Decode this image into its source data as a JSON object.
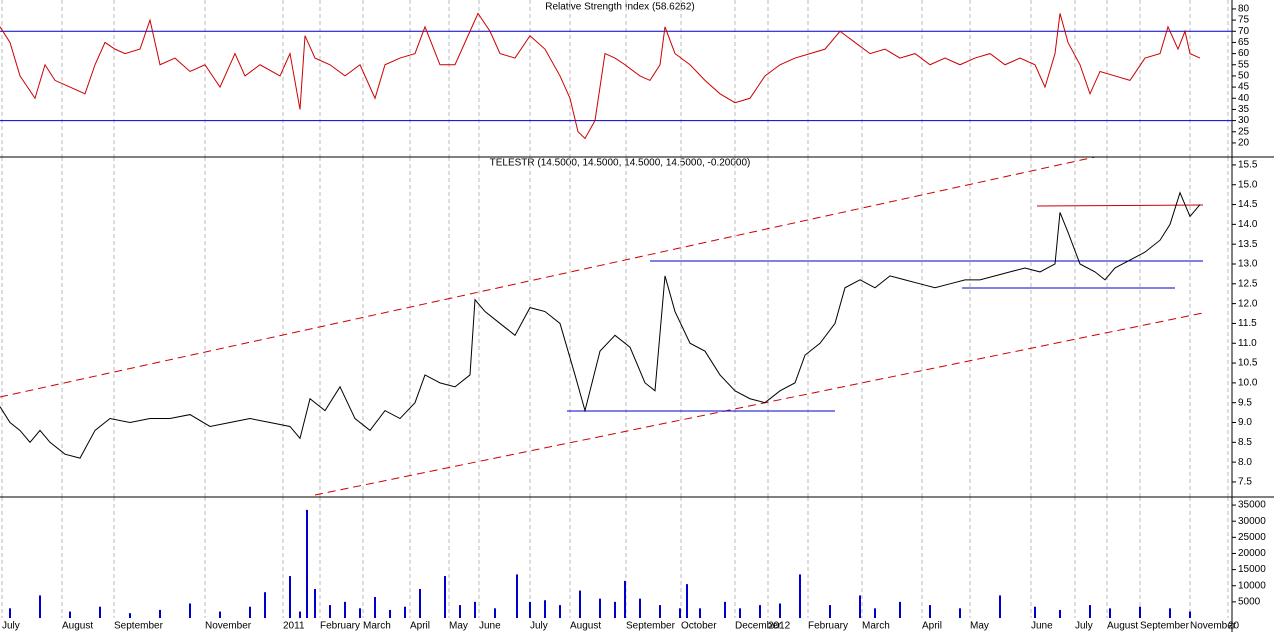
{
  "chart_data": [
    {
      "type": "line",
      "title": "Relative Strength Index (58.6262)",
      "color": "#cc0000",
      "xlim": [
        0,
        1232
      ],
      "x": [
        0,
        10,
        20,
        35,
        45,
        55,
        70,
        85,
        95,
        105,
        115,
        125,
        140,
        150,
        160,
        175,
        190,
        205,
        220,
        235,
        245,
        260,
        280,
        290,
        300,
        305,
        315,
        330,
        345,
        360,
        375,
        385,
        400,
        415,
        425,
        440,
        455,
        470,
        478,
        490,
        500,
        515,
        530,
        545,
        560,
        570,
        578,
        585,
        595,
        605,
        615,
        625,
        640,
        650,
        660,
        665,
        675,
        690,
        705,
        720,
        735,
        750,
        765,
        780,
        795,
        810,
        825,
        840,
        855,
        870,
        885,
        900,
        915,
        930,
        945,
        960,
        975,
        990,
        1005,
        1020,
        1035,
        1045,
        1055,
        1060,
        1068,
        1080,
        1090,
        1100,
        1115,
        1130,
        1145,
        1160,
        1168,
        1178,
        1185,
        1190,
        1200
      ],
      "values": [
        72,
        65,
        50,
        40,
        55,
        48,
        45,
        42,
        55,
        65,
        62,
        60,
        62,
        75,
        55,
        58,
        52,
        55,
        45,
        60,
        50,
        55,
        50,
        60,
        35,
        68,
        58,
        55,
        50,
        55,
        40,
        55,
        58,
        60,
        72,
        55,
        55,
        70,
        78,
        70,
        60,
        58,
        68,
        62,
        50,
        40,
        25,
        22,
        30,
        60,
        58,
        55,
        50,
        48,
        55,
        72,
        60,
        55,
        48,
        42,
        38,
        40,
        50,
        55,
        58,
        60,
        62,
        70,
        65,
        60,
        62,
        58,
        60,
        55,
        58,
        55,
        58,
        60,
        55,
        58,
        55,
        45,
        60,
        78,
        65,
        55,
        42,
        52,
        50,
        48,
        58,
        60,
        72,
        62,
        70,
        60,
        58
      ],
      "levels": [
        70,
        30
      ],
      "ylim": [
        13.7,
        84.0
      ],
      "yticks": [
        20,
        25,
        30,
        35,
        40,
        45,
        50,
        55,
        60,
        65,
        70,
        75,
        80
      ]
    },
    {
      "type": "line",
      "title": "TELESTR (14.5000, 14.5000, 14.5000, 14.5000, -0.20000)",
      "color": "#000000",
      "xlim": [
        0,
        1232
      ],
      "x": [
        0,
        10,
        20,
        30,
        40,
        50,
        65,
        80,
        95,
        110,
        130,
        150,
        170,
        190,
        210,
        230,
        250,
        270,
        290,
        300,
        310,
        325,
        340,
        355,
        370,
        385,
        400,
        415,
        425,
        440,
        455,
        470,
        475,
        485,
        500,
        515,
        530,
        545,
        560,
        575,
        585,
        600,
        615,
        630,
        645,
        655,
        665,
        675,
        690,
        705,
        720,
        735,
        750,
        765,
        780,
        795,
        805,
        820,
        835,
        845,
        860,
        875,
        890,
        905,
        920,
        935,
        950,
        965,
        980,
        995,
        1010,
        1025,
        1040,
        1055,
        1060,
        1068,
        1080,
        1095,
        1105,
        1115,
        1130,
        1145,
        1160,
        1170,
        1180,
        1190,
        1200
      ],
      "values": [
        9.4,
        9.0,
        8.8,
        8.5,
        8.8,
        8.5,
        8.2,
        8.1,
        8.8,
        9.1,
        9.0,
        9.1,
        9.1,
        9.2,
        8.9,
        9.0,
        9.1,
        9.0,
        8.9,
        8.6,
        9.6,
        9.3,
        9.9,
        9.1,
        8.8,
        9.3,
        9.1,
        9.5,
        10.2,
        10.0,
        9.9,
        10.2,
        12.1,
        11.8,
        11.5,
        11.2,
        11.9,
        11.8,
        11.5,
        10.2,
        9.3,
        10.8,
        11.2,
        10.9,
        10.0,
        9.8,
        12.7,
        11.8,
        11.0,
        10.8,
        10.2,
        9.8,
        9.6,
        9.5,
        9.8,
        10.0,
        10.7,
        11.0,
        11.5,
        12.4,
        12.6,
        12.4,
        12.7,
        12.6,
        12.5,
        12.4,
        12.5,
        12.6,
        12.6,
        12.7,
        12.8,
        12.9,
        12.8,
        13.0,
        14.3,
        13.8,
        13.0,
        12.8,
        12.6,
        12.9,
        13.1,
        13.3,
        13.6,
        14.0,
        14.8,
        14.2,
        14.5
      ],
      "ylim": [
        7.12,
        15.7
      ],
      "yticks": [
        7.5,
        {
          "value": 8,
          "label": "8.0"
        },
        8.5,
        {
          "value": 9,
          "label": "9.0"
        },
        9.5,
        {
          "value": 10,
          "label": "10.0"
        },
        10.5,
        {
          "value": 11,
          "label": "11.0"
        },
        11.5,
        {
          "value": 12,
          "label": "12.0"
        },
        12.5,
        {
          "value": 13,
          "label": "13.0"
        },
        13.5,
        {
          "value": 14,
          "label": "14.0"
        },
        14.5,
        {
          "value": 15,
          "label": "15.0"
        },
        15.5
      ]
    },
    {
      "type": "bar",
      "color": "#0000cc",
      "xlim": [
        0,
        1232
      ],
      "x": [
        10,
        40,
        70,
        100,
        130,
        160,
        190,
        220,
        250,
        265,
        290,
        300,
        307,
        315,
        330,
        345,
        360,
        375,
        390,
        405,
        420,
        445,
        460,
        475,
        495,
        517,
        530,
        545,
        560,
        580,
        600,
        615,
        625,
        640,
        660,
        680,
        687,
        700,
        725,
        740,
        760,
        780,
        800,
        830,
        860,
        875,
        900,
        930,
        960,
        1000,
        1035,
        1060,
        1090,
        1110,
        1140,
        1170,
        1190
      ],
      "values": [
        3000,
        7000,
        2000,
        3500,
        1500,
        2500,
        4500,
        2000,
        3500,
        8000,
        13000,
        2000,
        33500,
        9000,
        4000,
        5000,
        3000,
        6500,
        2500,
        3500,
        9000,
        13000,
        4000,
        5000,
        3000,
        13500,
        5000,
        5500,
        4000,
        8500,
        6000,
        5000,
        11500,
        6000,
        4000,
        3000,
        10500,
        3000,
        5000,
        3000,
        4000,
        4500,
        13500,
        4000,
        7000,
        3000,
        5000,
        4000,
        3000,
        7000,
        3500,
        2500,
        4000,
        3000,
        3500,
        3000,
        2000
      ],
      "ylim": [
        0,
        37500
      ],
      "yticks": [
        5000,
        10000,
        15000,
        20000,
        25000,
        30000,
        35000
      ],
      "xticks": [
        {
          "value": 2,
          "label": "July"
        },
        {
          "value": 62,
          "label": "August"
        },
        {
          "value": 114,
          "label": "September"
        },
        {
          "value": 205,
          "label": "November"
        },
        {
          "value": 283,
          "label": "2011"
        },
        {
          "value": 320,
          "label": "February"
        },
        {
          "value": 363,
          "label": "March"
        },
        {
          "value": 410,
          "label": "April"
        },
        {
          "value": 449,
          "label": "May"
        },
        {
          "value": 479,
          "label": "June"
        },
        {
          "value": 530,
          "label": "July"
        },
        {
          "value": 570,
          "label": "August"
        },
        {
          "value": 626,
          "label": "September"
        },
        {
          "value": 681,
          "label": "October"
        },
        {
          "value": 735,
          "label": "December"
        },
        {
          "value": 768,
          "label": "2012"
        },
        {
          "value": 808,
          "label": "February"
        },
        {
          "value": 862,
          "label": "March"
        },
        {
          "value": 922,
          "label": "April"
        },
        {
          "value": 970,
          "label": "May"
        },
        {
          "value": 1031,
          "label": "June"
        },
        {
          "value": 1075,
          "label": "July"
        },
        {
          "value": 1107,
          "label": "August"
        },
        {
          "value": 1140,
          "label": "September"
        },
        {
          "value": 1190,
          "label": "November"
        },
        {
          "value": 1228,
          "label": "20"
        }
      ]
    }
  ]
}
